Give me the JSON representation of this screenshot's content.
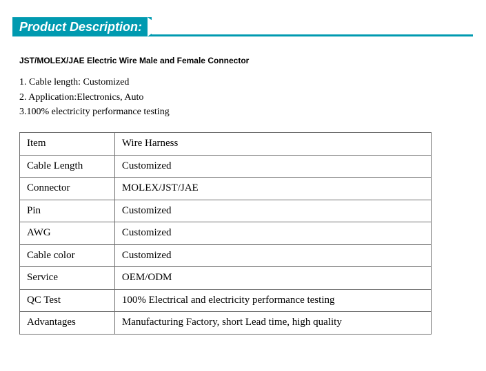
{
  "header": {
    "title": "Product Description:",
    "bg_color": "#009ab0",
    "text_color": "#ffffff"
  },
  "product_title": "JST/MOLEX/JAE Electric Wire Male and Female Connector",
  "bullets": [
    "1. Cable length: Customized",
    "2. Application:Electronics, Auto",
    "3.100% electricity performance testing"
  ],
  "table": {
    "rows": [
      {
        "label": "Item",
        "value": "Wire Harness"
      },
      {
        "label": "Cable Length",
        "value": "Customized"
      },
      {
        "label": "Connector",
        "value": "MOLEX/JST/JAE"
      },
      {
        "label": "Pin",
        "value": "Customized"
      },
      {
        "label": "AWG",
        "value": "Customized"
      },
      {
        "label": "Cable color",
        "value": "Customized"
      },
      {
        "label": "Service",
        "value": "OEM/ODM"
      },
      {
        "label": "QC Test",
        "value": "100% Electrical and electricity performance testing"
      },
      {
        "label": "Advantages",
        "value": "Manufacturing Factory, short Lead time, high quality"
      }
    ],
    "border_color": "#707070",
    "label_width": 138,
    "value_width": 460
  },
  "colors": {
    "accent": "#009ab0",
    "text": "#000000",
    "bg": "#ffffff"
  }
}
